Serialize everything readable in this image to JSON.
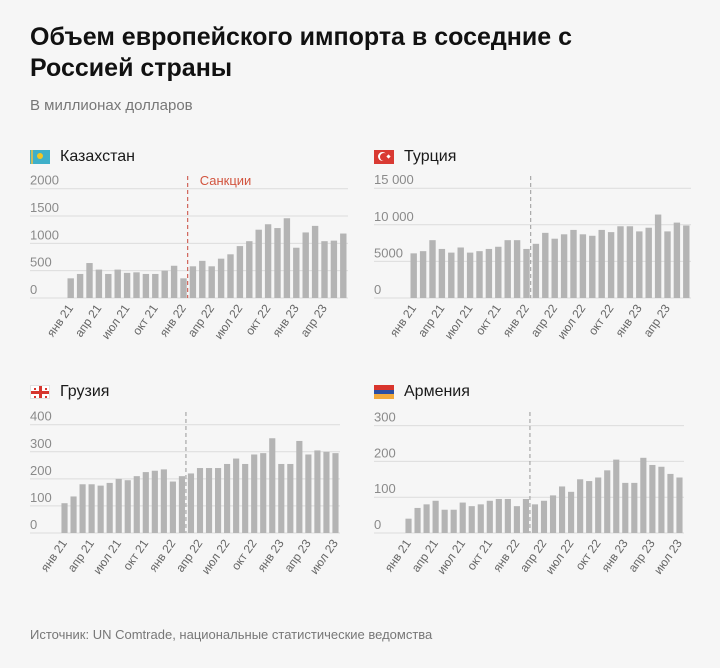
{
  "title": "Объем европейского импорта в соседние с Россией страны",
  "subtitle": "В миллионах долларов",
  "source": "Источник: UN Comtrade, национальные статистические ведомства",
  "colors": {
    "bar": "#b4b4b4",
    "sanction_line": "#c9483a",
    "sanction_label": "#d2543e",
    "grid": "#dcdcdc",
    "axis_text": "#8a8a8a"
  },
  "chart_data": [
    {
      "type": "bar",
      "country": "Казахстан",
      "flag_icon": "kazakhstan-flag-icon",
      "yticks": [
        0,
        500,
        1000,
        1500,
        2000
      ],
      "ytick_labels": [
        "0",
        "500",
        "1000",
        "1500",
        "2000"
      ],
      "ylim": [
        0,
        2050
      ],
      "xtick_labels": [
        "янв 21",
        "апр 21",
        "июл 21",
        "окт 21",
        "янв 22",
        "апр 22",
        "июл 22",
        "окт 22",
        "янв 23",
        "апр 23"
      ],
      "xtick_index": [
        0,
        3,
        6,
        9,
        12,
        15,
        18,
        21,
        24,
        27
      ],
      "annotation": "Санкции",
      "sanction_index": 13,
      "values": [
        360,
        440,
        640,
        520,
        440,
        520,
        460,
        470,
        440,
        440,
        500,
        590,
        360,
        580,
        680,
        580,
        720,
        800,
        950,
        1040,
        1250,
        1350,
        1280,
        1460,
        920,
        1200,
        1320,
        1040,
        1050,
        1180
      ]
    },
    {
      "type": "bar",
      "country": "Турция",
      "flag_icon": "turkey-flag-icon",
      "yticks": [
        0,
        5000,
        10000,
        15000
      ],
      "ytick_labels": [
        "0",
        "5000",
        "10 000",
        "15 000"
      ],
      "ylim": [
        0,
        15300
      ],
      "xtick_labels": [
        "янв 21",
        "апр 21",
        "июл 21",
        "окт 21",
        "янв 22",
        "апр 22",
        "июл 22",
        "окт 22",
        "янв 23",
        "апр 23"
      ],
      "xtick_index": [
        0,
        3,
        6,
        9,
        12,
        15,
        18,
        21,
        24,
        27
      ],
      "sanction_index": 13,
      "values": [
        6100,
        6400,
        7900,
        6700,
        6200,
        6900,
        6200,
        6400,
        6700,
        7000,
        7900,
        7900,
        6700,
        7400,
        8900,
        8100,
        8700,
        9300,
        8700,
        8500,
        9300,
        9000,
        9800,
        9800,
        9100,
        9600,
        11400,
        9100,
        10300,
        9900
      ]
    },
    {
      "type": "bar",
      "country": "Грузия",
      "flag_icon": "georgia-flag-icon",
      "yticks": [
        0,
        100,
        200,
        300,
        400
      ],
      "ytick_labels": [
        "0",
        "100",
        "200",
        "300",
        "400"
      ],
      "ylim": [
        0,
        410
      ],
      "xtick_labels": [
        "янв 21",
        "апр 21",
        "июл 21",
        "окт 21",
        "янв 22",
        "апр 22",
        "июл 22",
        "окт 22",
        "янв 23",
        "апр 23",
        "июл 23"
      ],
      "xtick_index": [
        0,
        3,
        6,
        9,
        12,
        15,
        18,
        21,
        24,
        27,
        30
      ],
      "sanction_index": 14,
      "values": [
        110,
        135,
        180,
        180,
        175,
        185,
        200,
        195,
        210,
        225,
        230,
        235,
        190,
        210,
        220,
        240,
        240,
        240,
        255,
        275,
        255,
        290,
        295,
        350,
        255,
        255,
        340,
        290,
        305,
        300,
        295
      ]
    },
    {
      "type": "bar",
      "country": "Армения",
      "flag_icon": "armenia-flag-icon",
      "yticks": [
        0,
        100,
        200,
        300
      ],
      "ytick_labels": [
        "0",
        "100",
        "200",
        "300"
      ],
      "ylim": [
        0,
        310
      ],
      "xtick_labels": [
        "янв 21",
        "апр 21",
        "июл 21",
        "окт 21",
        "янв 22",
        "апр 22",
        "июл 22",
        "окт 22",
        "янв 23",
        "апр 23",
        "июл 23"
      ],
      "xtick_index": [
        0,
        3,
        6,
        9,
        12,
        15,
        18,
        21,
        24,
        27,
        30
      ],
      "sanction_index": 14,
      "values": [
        40,
        70,
        80,
        90,
        65,
        65,
        85,
        75,
        80,
        90,
        95,
        95,
        75,
        95,
        80,
        90,
        105,
        130,
        115,
        150,
        145,
        155,
        175,
        205,
        140,
        140,
        210,
        190,
        185,
        165,
        155
      ]
    }
  ]
}
